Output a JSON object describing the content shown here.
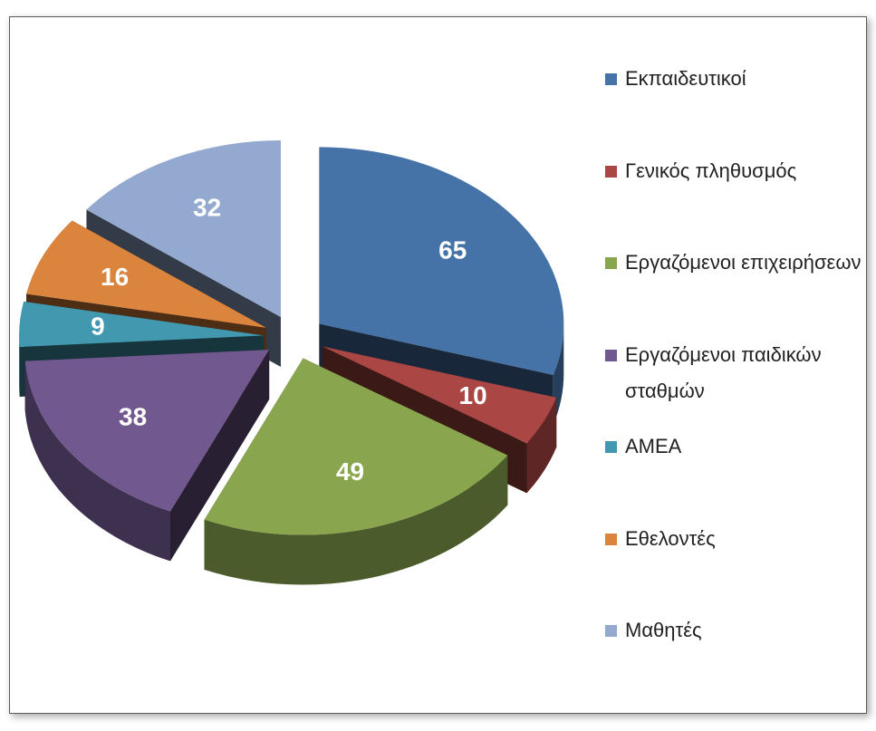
{
  "chart_data": {
    "type": "pie",
    "categories": [
      "Εκπαιδευτικοί",
      "Γενικός πληθυσμός",
      "Εργαζόμενοι επιχειρήσεων",
      "Εργαζόμενοι παιδικών σταθμών",
      "ΑΜΕΑ",
      "Εθελοντές",
      "Μαθητές"
    ],
    "values": [
      65,
      10,
      49,
      38,
      9,
      16,
      32
    ],
    "colors": [
      "#4572a7",
      "#aa4643",
      "#89a54e",
      "#71588f",
      "#4198af",
      "#db843d",
      "#93a9cf"
    ],
    "legend": "right"
  }
}
